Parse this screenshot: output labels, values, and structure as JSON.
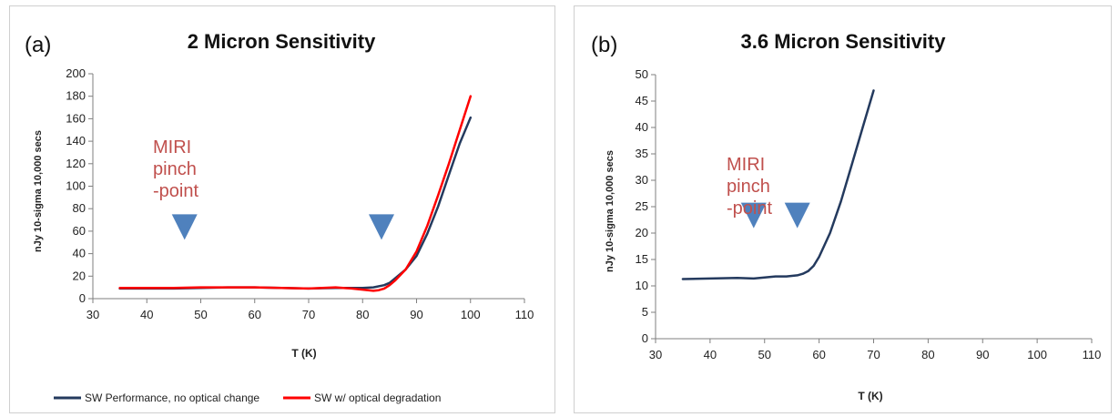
{
  "chart_data": [
    {
      "panel_label": "(a)",
      "type": "line",
      "title": "2 Micron Sensitivity",
      "xlabel": "T (K)",
      "ylabel": "nJy 10-sigma 10,000 secs",
      "xlim": [
        30,
        110
      ],
      "ylim": [
        0,
        200
      ],
      "xticks": [
        30,
        40,
        50,
        60,
        70,
        80,
        90,
        100,
        110
      ],
      "yticks": [
        0,
        20,
        40,
        60,
        80,
        100,
        120,
        140,
        160,
        180,
        200
      ],
      "grid": false,
      "legend_position": "bottom",
      "annotation": [
        "MIRI",
        "pinch",
        "-point"
      ],
      "markers": [
        {
          "x": 47,
          "y": 62
        },
        {
          "x": 83.5,
          "y": 62
        }
      ],
      "series": [
        {
          "name": "SW Performance, no optical change",
          "color": "#243a5e",
          "x": [
            35,
            40,
            45,
            50,
            55,
            60,
            65,
            70,
            75,
            78,
            80,
            82,
            84,
            85,
            86,
            88,
            90,
            92,
            94,
            96,
            98,
            100
          ],
          "y": [
            9,
            9,
            9,
            9.5,
            10,
            10,
            9.5,
            9,
            9.5,
            9.5,
            9.5,
            10,
            12,
            14,
            18,
            26,
            38,
            58,
            82,
            110,
            138,
            161
          ]
        },
        {
          "name": "SW w/ optical degradation",
          "color": "#ff0000",
          "x": [
            35,
            40,
            45,
            50,
            55,
            60,
            65,
            70,
            75,
            78,
            80,
            82,
            83,
            84,
            85,
            86,
            88,
            90,
            92,
            94,
            96,
            98,
            100
          ],
          "y": [
            9.5,
            9.5,
            9.5,
            10,
            10,
            10,
            9.5,
            9,
            10,
            9,
            8,
            7,
            7.5,
            9,
            12,
            16,
            26,
            42,
            65,
            92,
            120,
            150,
            180
          ]
        }
      ]
    },
    {
      "panel_label": "(b)",
      "type": "line",
      "title": "3.6 Micron Sensitivity",
      "xlabel": "T (K)",
      "ylabel": "nJy 10-sigma 10,000 secs",
      "xlim": [
        30,
        110
      ],
      "ylim": [
        0,
        50
      ],
      "xticks": [
        30,
        40,
        50,
        60,
        70,
        80,
        90,
        100,
        110
      ],
      "yticks": [
        0,
        5,
        10,
        15,
        20,
        25,
        30,
        35,
        40,
        45,
        50
      ],
      "grid": false,
      "annotation": [
        "MIRI",
        "pinch",
        "-point"
      ],
      "markers": [
        {
          "x": 48,
          "y": 23
        },
        {
          "x": 56,
          "y": 23
        }
      ],
      "series": [
        {
          "name": "",
          "color": "#243a5e",
          "x": [
            35,
            40,
            45,
            48,
            50,
            52,
            54,
            56,
            57,
            58,
            59,
            60,
            62,
            64,
            66,
            68,
            70
          ],
          "y": [
            11.3,
            11.4,
            11.5,
            11.4,
            11.6,
            11.8,
            11.8,
            12,
            12.3,
            12.8,
            13.8,
            15.5,
            20,
            26,
            33,
            40,
            47
          ]
        }
      ]
    }
  ]
}
